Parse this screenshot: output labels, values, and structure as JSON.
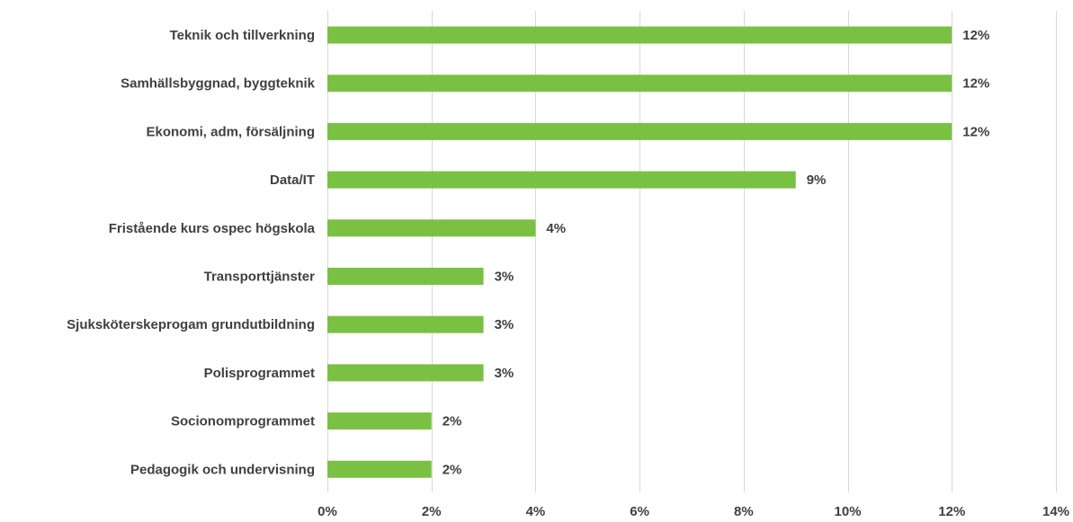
{
  "chart_data": {
    "type": "bar",
    "orientation": "horizontal",
    "categories": [
      "Teknik och tillverkning",
      "Samhällsbyggnad, byggteknik",
      "Ekonomi, adm, försäljning",
      "Data/IT",
      "Fristående kurs ospec högskola",
      "Transporttjänster",
      "Sjuksköterskeprogam grundutbildning",
      "Polisprogrammet",
      "Socionomprogrammet",
      "Pedagogik och undervisning"
    ],
    "values": [
      12,
      12,
      12,
      9,
      4,
      3,
      3,
      3,
      2,
      2
    ],
    "value_labels": [
      "12%",
      "12%",
      "12%",
      "9%",
      "4%",
      "3%",
      "3%",
      "3%",
      "2%",
      "2%"
    ],
    "xlim": [
      0,
      14
    ],
    "x_ticks": [
      0,
      2,
      4,
      6,
      8,
      10,
      12,
      14
    ],
    "x_tick_labels": [
      "0%",
      "2%",
      "4%",
      "6%",
      "8%",
      "10%",
      "12%",
      "14%"
    ],
    "grid": true,
    "legend": "none",
    "bar_color": "#7ac143",
    "title": "",
    "xlabel": "",
    "ylabel": ""
  }
}
